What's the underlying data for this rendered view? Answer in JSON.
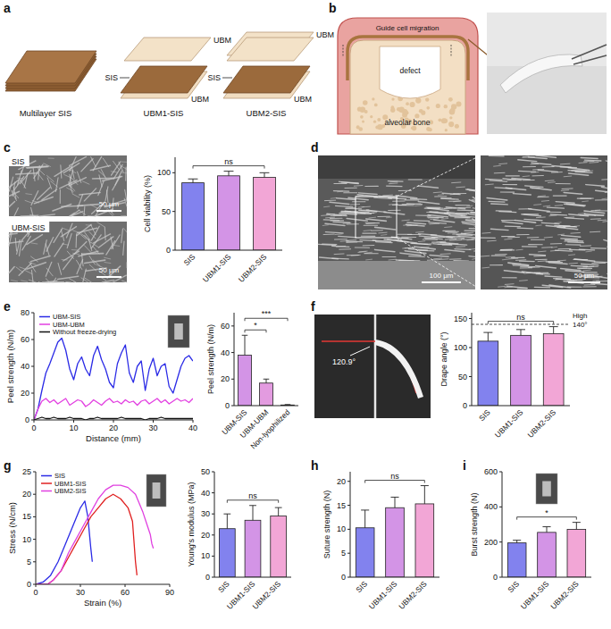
{
  "chart_data": [
    {
      "type": "bar",
      "y_label": "Cell viability (%)",
      "categories": [
        "SIS",
        "UBM1-SIS",
        "UBM2-SIS"
      ],
      "values": [
        87,
        96,
        94
      ],
      "errors": [
        5,
        6,
        6
      ],
      "colors": [
        "#8282ee",
        "#d394e6",
        "#f2a6d6"
      ],
      "ylim": [
        0,
        120
      ],
      "yticks": [
        0,
        50,
        100
      ],
      "annotations": [
        {
          "text": "ns",
          "from": "SIS",
          "to": "UBM2-SIS"
        }
      ]
    },
    {
      "type": "line",
      "x_label": "Distance (mm)",
      "y_label": "Peel strength (N/m)",
      "x": [
        0,
        1,
        2,
        3,
        4,
        5,
        6,
        7,
        8,
        9,
        10,
        11,
        12,
        13,
        14,
        15,
        16,
        17,
        18,
        19,
        20,
        21,
        22,
        23,
        24,
        25,
        26,
        27,
        28,
        29,
        30,
        31,
        32,
        33,
        34,
        35,
        36,
        37,
        38,
        39,
        40
      ],
      "series": [
        {
          "name": "UBM-SIS",
          "color": "#2b2be6",
          "values": [
            0,
            8,
            22,
            35,
            42,
            50,
            58,
            61,
            52,
            38,
            30,
            42,
            47,
            38,
            33,
            48,
            55,
            45,
            38,
            28,
            24,
            42,
            50,
            56,
            35,
            28,
            40,
            44,
            22,
            38,
            46,
            33,
            40,
            42,
            25,
            20,
            30,
            40,
            46,
            48,
            44
          ]
        },
        {
          "name": "UBM-UBM",
          "color": "#e23fe0",
          "values": [
            0,
            8,
            14,
            16,
            13,
            15,
            12,
            14,
            16,
            11,
            13,
            15,
            14,
            10,
            12,
            15,
            13,
            11,
            14,
            16,
            13,
            14,
            12,
            15,
            13,
            14,
            11,
            14,
            15,
            12,
            14,
            16,
            13,
            15,
            12,
            14,
            16,
            14,
            15,
            13,
            16
          ]
        },
        {
          "name": "Without freeze-drying",
          "color": "#111111",
          "values": [
            0,
            1,
            2,
            1,
            1,
            2,
            1,
            1,
            1,
            2,
            1,
            1,
            1,
            0,
            1,
            1,
            2,
            1,
            1,
            1,
            1,
            1,
            2,
            1,
            1,
            1,
            1,
            1,
            0,
            1,
            1,
            1,
            2,
            1,
            1,
            1,
            1,
            1,
            1,
            1,
            1
          ]
        }
      ],
      "xlim": [
        0,
        40
      ],
      "xticks": [
        0,
        10,
        20,
        30,
        40
      ],
      "ylim": [
        0,
        80
      ],
      "yticks": [
        0,
        20,
        40,
        60,
        80
      ],
      "legend": "upper left"
    },
    {
      "type": "bar",
      "y_label": "Peel strength (N/m)",
      "categories": [
        "UBM-SIS",
        "UBM-UBM",
        "Non-lyophilized"
      ],
      "values": [
        38,
        17,
        0.5
      ],
      "errors": [
        15,
        3,
        0.3
      ],
      "colors": [
        "#d394e6",
        "#e39be0",
        "#f2a6d6"
      ],
      "ylim": [
        0,
        70
      ],
      "yticks": [
        0,
        20,
        40,
        60
      ],
      "annotations": [
        {
          "text": "*",
          "from": "UBM-SIS",
          "to": "UBM-UBM"
        },
        {
          "text": "***",
          "from": "UBM-SIS",
          "to": "Non-lyophilized"
        }
      ]
    },
    {
      "type": "bar",
      "y_label": "Drape angle (°)",
      "categories": [
        "SIS",
        "UBM1-SIS",
        "UBM2-SIS"
      ],
      "values": [
        111,
        121,
        124
      ],
      "errors": [
        15,
        10,
        12
      ],
      "colors": [
        "#8282ee",
        "#d394e6",
        "#f2a6d6"
      ],
      "ylim": [
        0,
        160
      ],
      "yticks": [
        0,
        50,
        100,
        150
      ],
      "threshold": {
        "value": 140,
        "label": "140°",
        "note": "High"
      },
      "annotations": [
        {
          "text": "ns",
          "from": "SIS",
          "to": "UBM2-SIS"
        }
      ]
    },
    {
      "type": "line",
      "x_label": "Strain (%)",
      "y_label": "Stress (N/cm)",
      "series": [
        {
          "name": "SIS",
          "color": "#2b2be6",
          "x": [
            0,
            5,
            10,
            15,
            20,
            25,
            30,
            33,
            35,
            37,
            38
          ],
          "values": [
            0,
            0.5,
            2,
            5,
            9,
            13,
            17,
            18.5,
            15,
            8,
            5
          ]
        },
        {
          "name": "UBM1-SIS",
          "color": "#e02020",
          "x": [
            0,
            8,
            12,
            17,
            22,
            27,
            32,
            37,
            42,
            47,
            52,
            57,
            62,
            65,
            67,
            68
          ],
          "values": [
            0,
            0,
            1,
            3,
            6,
            9,
            12,
            15,
            17,
            19,
            20,
            19,
            17,
            14,
            5,
            2
          ]
        },
        {
          "name": "UBM2-SIS",
          "color": "#e040e0",
          "x": [
            0,
            8,
            12,
            17,
            22,
            27,
            32,
            37,
            42,
            47,
            52,
            57,
            62,
            67,
            72,
            75,
            77,
            78,
            79
          ],
          "values": [
            0,
            0,
            1,
            3,
            7,
            10,
            13,
            16,
            19,
            21,
            22,
            22,
            21.5,
            20,
            16,
            13,
            11,
            9,
            8
          ]
        }
      ],
      "xlim": [
        0,
        90
      ],
      "xticks": [
        0,
        30,
        60,
        90
      ],
      "ylim": [
        0,
        25
      ],
      "yticks": [
        0,
        5,
        10,
        15,
        20,
        25
      ],
      "legend": "upper left"
    },
    {
      "type": "bar",
      "y_label": "Young's modulus (MPa)",
      "categories": [
        "SIS",
        "UBM1-SIS",
        "UBM2-SIS"
      ],
      "values": [
        23,
        27,
        29
      ],
      "errors": [
        7,
        7,
        4
      ],
      "colors": [
        "#8282ee",
        "#d394e6",
        "#f2a6d6"
      ],
      "ylim": [
        0,
        50
      ],
      "yticks": [
        0,
        10,
        20,
        30,
        40,
        50
      ],
      "annotations": [
        {
          "text": "ns",
          "from": "SIS",
          "to": "UBM2-SIS"
        }
      ]
    },
    {
      "type": "bar",
      "y_label": "Suture strength (N)",
      "categories": [
        "SIS",
        "UBM1-SIS",
        "UBM2-SIS"
      ],
      "values": [
        10.3,
        14.5,
        15.3
      ],
      "errors": [
        3.7,
        2.2,
        3.8
      ],
      "colors": [
        "#8282ee",
        "#d394e6",
        "#f2a6d6"
      ],
      "ylim": [
        0,
        22
      ],
      "yticks": [
        0,
        5,
        10,
        15,
        20
      ],
      "annotations": [
        {
          "text": "ns",
          "from": "SIS",
          "to": "UBM2-SIS"
        }
      ]
    },
    {
      "type": "bar",
      "y_label": "Burst strength (N)",
      "categories": [
        "SIS",
        "UBM1-SIS",
        "UBM2-SIS"
      ],
      "values": [
        195,
        255,
        272
      ],
      "errors": [
        15,
        32,
        40
      ],
      "colors": [
        "#8282ee",
        "#d394e6",
        "#f2a6d6"
      ],
      "ylim": [
        0,
        600
      ],
      "yticks": [
        0,
        200,
        400,
        600
      ],
      "annotations": [
        {
          "text": "*",
          "from": "SIS",
          "to": "UBM2-SIS"
        }
      ]
    }
  ],
  "panels": {
    "a": {
      "letter": "a",
      "sheets": [
        {
          "title": "Multilayer SIS"
        },
        {
          "title": "UBM1-SIS",
          "top": "UBM",
          "middle": "SIS",
          "bottom": "UBM"
        },
        {
          "title": "UBM2-SIS",
          "top": "UBM",
          "middle": "SIS",
          "bottom": "UBM"
        }
      ]
    },
    "b": {
      "letter": "b",
      "caption": "Guide cell migration",
      "defect": "defect",
      "bone": "alveolar bone"
    },
    "c": {
      "letter": "c",
      "images": [
        {
          "label": "SIS",
          "scale_bar": "50 μm"
        },
        {
          "label": "UBM-SIS",
          "scale_bar": "50 μm"
        }
      ]
    },
    "d": {
      "letter": "d",
      "scale_bars": [
        "100 μm",
        "50 μm"
      ]
    },
    "e": {
      "letter": "e"
    },
    "f": {
      "letter": "f",
      "angle": "120.9°"
    },
    "g": {
      "letter": "g"
    },
    "h": {
      "letter": "h"
    },
    "i": {
      "letter": "i"
    }
  }
}
